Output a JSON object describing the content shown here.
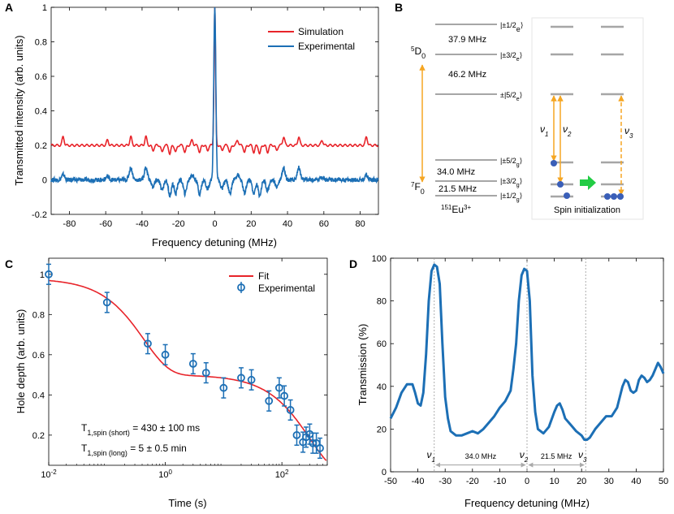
{
  "colors": {
    "simulation": "#e8242a",
    "experimental": "#1c6fb5",
    "fit": "#e8242a",
    "orange": "#f5a623",
    "level": "#a6a6a6",
    "arrow_green": "#22cc44",
    "dot": "#3a5fb8",
    "grey_arrow": "#aaaaaa"
  },
  "panels": {
    "A": {
      "letter": "A"
    },
    "B": {
      "letter": "B"
    },
    "C": {
      "letter": "C"
    },
    "D": {
      "letter": "D"
    }
  },
  "chart_data": [
    {
      "id": "A",
      "type": "line",
      "title": "",
      "xlabel": "Frequency detuning (MHz)",
      "ylabel": "Transmitted intensity  (arb. units)",
      "xlim": [
        -90,
        90
      ],
      "ylim": [
        -0.2,
        1.0
      ],
      "xticks": [
        -80,
        -60,
        -40,
        -20,
        0,
        20,
        40,
        60,
        80
      ],
      "xtick_labels": [
        "-80",
        "-60",
        "-40",
        "-20",
        "0",
        "20",
        "40",
        "60",
        "80"
      ],
      "yticks": [
        -0.2,
        0,
        0.2,
        0.4,
        0.6,
        0.8,
        1.0
      ],
      "ytick_labels": [
        "-0.2",
        "0",
        "0.2",
        "0.4",
        "0.6",
        "0.8",
        "1"
      ],
      "legend": [
        {
          "name": "Simulation",
          "color_key": "simulation"
        },
        {
          "name": "Experimental",
          "color_key": "experimental"
        }
      ],
      "series": [
        {
          "name": "Simulation",
          "baseline": 0.2,
          "center_peak": {
            "x": 0,
            "height": 1.0,
            "width": 0.6
          },
          "features": [
            {
              "x": -83.4,
              "amp": 0.05,
              "w": 0.8
            },
            {
              "x": -59.0,
              "amp": 0.03,
              "w": 0.8
            },
            {
              "x": -46.2,
              "amp": 0.05,
              "w": 0.8
            },
            {
              "x": -37.9,
              "amp": 0.05,
              "w": 0.8
            },
            {
              "x": -34.0,
              "amp": -0.03,
              "w": 0.8
            },
            {
              "x": -29.0,
              "amp": -0.04,
              "w": 0.8
            },
            {
              "x": -24.7,
              "amp": -0.05,
              "w": 0.8
            },
            {
              "x": -21.5,
              "amp": -0.04,
              "w": 0.8
            },
            {
              "x": -16.4,
              "amp": -0.04,
              "w": 0.8
            },
            {
              "x": -12.5,
              "amp": 0.03,
              "w": 0.8
            },
            {
              "x": -8.3,
              "amp": -0.04,
              "w": 0.8
            },
            {
              "x": -4.0,
              "amp": -0.03,
              "w": 0.8
            },
            {
              "x": 4.0,
              "amp": -0.03,
              "w": 0.8
            },
            {
              "x": 8.3,
              "amp": -0.04,
              "w": 0.8
            },
            {
              "x": 12.5,
              "amp": 0.03,
              "w": 0.8
            },
            {
              "x": 16.4,
              "amp": -0.04,
              "w": 0.8
            },
            {
              "x": 21.5,
              "amp": -0.04,
              "w": 0.8
            },
            {
              "x": 24.7,
              "amp": -0.05,
              "w": 0.8
            },
            {
              "x": 29.0,
              "amp": -0.04,
              "w": 0.8
            },
            {
              "x": 34.0,
              "amp": -0.03,
              "w": 0.8
            },
            {
              "x": 37.9,
              "amp": 0.05,
              "w": 0.8
            },
            {
              "x": 46.2,
              "amp": 0.05,
              "w": 0.8
            },
            {
              "x": 59.0,
              "amp": 0.03,
              "w": 0.8
            },
            {
              "x": 83.4,
              "amp": 0.05,
              "w": 0.8
            }
          ]
        },
        {
          "name": "Experimental",
          "baseline": 0.0,
          "center_peak": {
            "x": 0,
            "height": 1.0,
            "width": 0.8
          },
          "features": [
            {
              "x": -83.4,
              "amp": 0.03,
              "w": 1.2
            },
            {
              "x": -59.0,
              "amp": 0.02,
              "w": 1.2
            },
            {
              "x": -46.2,
              "amp": 0.07,
              "w": 1.2
            },
            {
              "x": -37.9,
              "amp": 0.07,
              "w": 1.2
            },
            {
              "x": -34.0,
              "amp": -0.04,
              "w": 1.2
            },
            {
              "x": -29.0,
              "amp": -0.06,
              "w": 1.2
            },
            {
              "x": -24.7,
              "amp": -0.09,
              "w": 1.2
            },
            {
              "x": -21.5,
              "amp": -0.08,
              "w": 1.2
            },
            {
              "x": -16.4,
              "amp": -0.08,
              "w": 1.2
            },
            {
              "x": -12.5,
              "amp": 0.03,
              "w": 1.2
            },
            {
              "x": -8.3,
              "amp": -0.08,
              "w": 1.2
            },
            {
              "x": -4.0,
              "amp": -0.05,
              "w": 1.2
            },
            {
              "x": 4.0,
              "amp": -0.05,
              "w": 1.2
            },
            {
              "x": 8.3,
              "amp": -0.08,
              "w": 1.2
            },
            {
              "x": 12.5,
              "amp": 0.03,
              "w": 1.2
            },
            {
              "x": 16.4,
              "amp": -0.08,
              "w": 1.2
            },
            {
              "x": 21.5,
              "amp": -0.08,
              "w": 1.2
            },
            {
              "x": 24.7,
              "amp": -0.09,
              "w": 1.2
            },
            {
              "x": 29.0,
              "amp": -0.06,
              "w": 1.2
            },
            {
              "x": 34.0,
              "amp": -0.04,
              "w": 1.2
            },
            {
              "x": 37.9,
              "amp": 0.07,
              "w": 1.2
            },
            {
              "x": 46.2,
              "amp": 0.07,
              "w": 1.2
            },
            {
              "x": 59.0,
              "amp": 0.02,
              "w": 1.2
            },
            {
              "x": 83.4,
              "amp": 0.03,
              "w": 1.2
            }
          ]
        }
      ]
    },
    {
      "id": "C",
      "type": "scatter",
      "title": "",
      "xlabel": "Time (s)",
      "ylabel": "Hole depth (arb. units)",
      "xscale": "log",
      "xlim": [
        0.01,
        600
      ],
      "ylim": [
        0.05,
        1.08
      ],
      "xticks": [
        0.01,
        1,
        100
      ],
      "xtick_labels": [
        "10",
        "10",
        "10"
      ],
      "xtick_exponents": [
        "-2",
        "0",
        "2"
      ],
      "yticks": [
        0.2,
        0.4,
        0.6,
        0.8,
        1.0
      ],
      "ytick_labels": [
        "0.2",
        "0.4",
        "0.6",
        "0.8",
        "1"
      ],
      "legend": [
        {
          "name": "Fit",
          "color_key": "fit"
        },
        {
          "name": "Experimental",
          "color_key": "experimental"
        }
      ],
      "annotations": [
        {
          "prefix": "T",
          "sub": "1,spin (short)",
          "suffix": " = 430 ± 100 ms"
        },
        {
          "prefix": "T",
          "sub": "1,spin (long)",
          "suffix": " = 5 ± 0.5 min"
        }
      ],
      "fit": {
        "A1": 0.48,
        "T1": 0.43,
        "A2": 0.5,
        "T2": 300
      },
      "points": [
        {
          "x": 0.01,
          "y": 1.0,
          "err": 0.05
        },
        {
          "x": 0.1,
          "y": 0.86,
          "err": 0.05
        },
        {
          "x": 0.5,
          "y": 0.655,
          "err": 0.05
        },
        {
          "x": 1.0,
          "y": 0.6,
          "err": 0.05
        },
        {
          "x": 3.0,
          "y": 0.555,
          "err": 0.05
        },
        {
          "x": 5.0,
          "y": 0.51,
          "err": 0.05
        },
        {
          "x": 10.0,
          "y": 0.435,
          "err": 0.05
        },
        {
          "x": 20.0,
          "y": 0.485,
          "err": 0.05
        },
        {
          "x": 30.0,
          "y": 0.475,
          "err": 0.05
        },
        {
          "x": 60.0,
          "y": 0.37,
          "err": 0.05
        },
        {
          "x": 90.0,
          "y": 0.435,
          "err": 0.05
        },
        {
          "x": 110.0,
          "y": 0.395,
          "err": 0.05
        },
        {
          "x": 140.0,
          "y": 0.325,
          "err": 0.05
        },
        {
          "x": 180.0,
          "y": 0.2,
          "err": 0.05
        },
        {
          "x": 230.0,
          "y": 0.165,
          "err": 0.05
        },
        {
          "x": 260.0,
          "y": 0.19,
          "err": 0.05
        },
        {
          "x": 300.0,
          "y": 0.205,
          "err": 0.05
        },
        {
          "x": 340.0,
          "y": 0.16,
          "err": 0.05
        },
        {
          "x": 390.0,
          "y": 0.16,
          "err": 0.05
        },
        {
          "x": 450.0,
          "y": 0.135,
          "err": 0.05
        }
      ]
    },
    {
      "id": "D",
      "type": "line",
      "title": "",
      "xlabel": "Frequency detuning (MHz)",
      "ylabel": "Transmission (%)",
      "xlim": [
        -50,
        50
      ],
      "ylim": [
        0,
        100
      ],
      "xticks": [
        -50,
        -40,
        -30,
        -20,
        -10,
        0,
        10,
        20,
        30,
        40,
        50
      ],
      "xtick_labels": [
        "-50",
        "-40",
        "-30",
        "-20",
        "-10",
        "0",
        "10",
        "20",
        "30",
        "40",
        "50"
      ],
      "yticks": [
        0,
        20,
        40,
        60,
        80,
        100
      ],
      "ytick_labels": [
        "0",
        "20",
        "40",
        "60",
        "80",
        "100"
      ],
      "markers": [
        {
          "x": -34.0,
          "symbol": "ν",
          "sub": "1"
        },
        {
          "x": 0.0,
          "symbol": "ν",
          "sub": "2"
        },
        {
          "x": 21.5,
          "symbol": "ν",
          "sub": "3"
        }
      ],
      "spacings": [
        {
          "from": -34.0,
          "to": 0.0,
          "label": "34.0 MHz"
        },
        {
          "from": 0.0,
          "to": 21.5,
          "label": "21.5 MHz"
        }
      ],
      "series": [
        {
          "name": "Transmission",
          "points": [
            [
              -50,
              25
            ],
            [
              -48,
              30
            ],
            [
              -46,
              37
            ],
            [
              -44,
              41
            ],
            [
              -42,
              41
            ],
            [
              -41,
              37
            ],
            [
              -40,
              32
            ],
            [
              -39,
              31
            ],
            [
              -38,
              37
            ],
            [
              -37,
              55
            ],
            [
              -36,
              80
            ],
            [
              -35,
              94
            ],
            [
              -34,
              97
            ],
            [
              -33,
              96
            ],
            [
              -32,
              88
            ],
            [
              -31,
              60
            ],
            [
              -30,
              35
            ],
            [
              -29,
              25
            ],
            [
              -28,
              19
            ],
            [
              -26,
              17
            ],
            [
              -24,
              17
            ],
            [
              -22,
              18
            ],
            [
              -20,
              19
            ],
            [
              -18,
              18
            ],
            [
              -16,
              20
            ],
            [
              -14,
              23
            ],
            [
              -12,
              26
            ],
            [
              -10,
              30
            ],
            [
              -8,
              33
            ],
            [
              -6,
              38
            ],
            [
              -5,
              48
            ],
            [
              -4,
              60
            ],
            [
              -3,
              80
            ],
            [
              -2,
              92
            ],
            [
              -1,
              95
            ],
            [
              0,
              94
            ],
            [
              1,
              80
            ],
            [
              2,
              45
            ],
            [
              3,
              28
            ],
            [
              4,
              20
            ],
            [
              6,
              18
            ],
            [
              8,
              21
            ],
            [
              10,
              28
            ],
            [
              11,
              31
            ],
            [
              12,
              32
            ],
            [
              13,
              29
            ],
            [
              14,
              25
            ],
            [
              16,
              22
            ],
            [
              18,
              19
            ],
            [
              20,
              17
            ],
            [
              21,
              15
            ],
            [
              22,
              15
            ],
            [
              23,
              16
            ],
            [
              25,
              20
            ],
            [
              27,
              23
            ],
            [
              29,
              26
            ],
            [
              31,
              26
            ],
            [
              33,
              30
            ],
            [
              35,
              40
            ],
            [
              36,
              43
            ],
            [
              37,
              42
            ],
            [
              38,
              38
            ],
            [
              39,
              37
            ],
            [
              40,
              38
            ],
            [
              41,
              43
            ],
            [
              42,
              45
            ],
            [
              43,
              44
            ],
            [
              44,
              42
            ],
            [
              45,
              43
            ],
            [
              46,
              45
            ],
            [
              48,
              51
            ],
            [
              49,
              49
            ],
            [
              50,
              46
            ]
          ]
        }
      ]
    }
  ],
  "level_diagram": {
    "upper_state": {
      "label": "D",
      "pre": "5",
      "sub": "0"
    },
    "lower_state": {
      "label": "F",
      "pre": "7",
      "sub": "0"
    },
    "ion": {
      "pre": "151",
      "label": "Eu",
      "post": "3+"
    },
    "upper_levels": [
      {
        "label": "|±1/2",
        "sub": "e",
        "close": "⟩"
      },
      {
        "label": "|±3/2",
        "sub": "e",
        "close": "⟩"
      },
      {
        "label": "±|5/2",
        "sub": "e",
        "close": "⟩"
      }
    ],
    "lower_levels": [
      {
        "label": "|±5/2",
        "sub": "g",
        "close": "⟩"
      },
      {
        "label": "|±3/2",
        "sub": "g",
        "close": "⟩"
      },
      {
        "label": "|±1/2",
        "sub": "g",
        "close": "⟩"
      }
    ],
    "splittings": [
      "37.9 MHz",
      "46.2 MHz",
      "34.0 MHz",
      "21.5 MHz"
    ],
    "transitions": [
      {
        "symbol": "ν",
        "sub": "1"
      },
      {
        "symbol": "ν",
        "sub": "2"
      },
      {
        "symbol": "ν",
        "sub": "3"
      }
    ],
    "spin_init_label": "Spin initialization"
  }
}
